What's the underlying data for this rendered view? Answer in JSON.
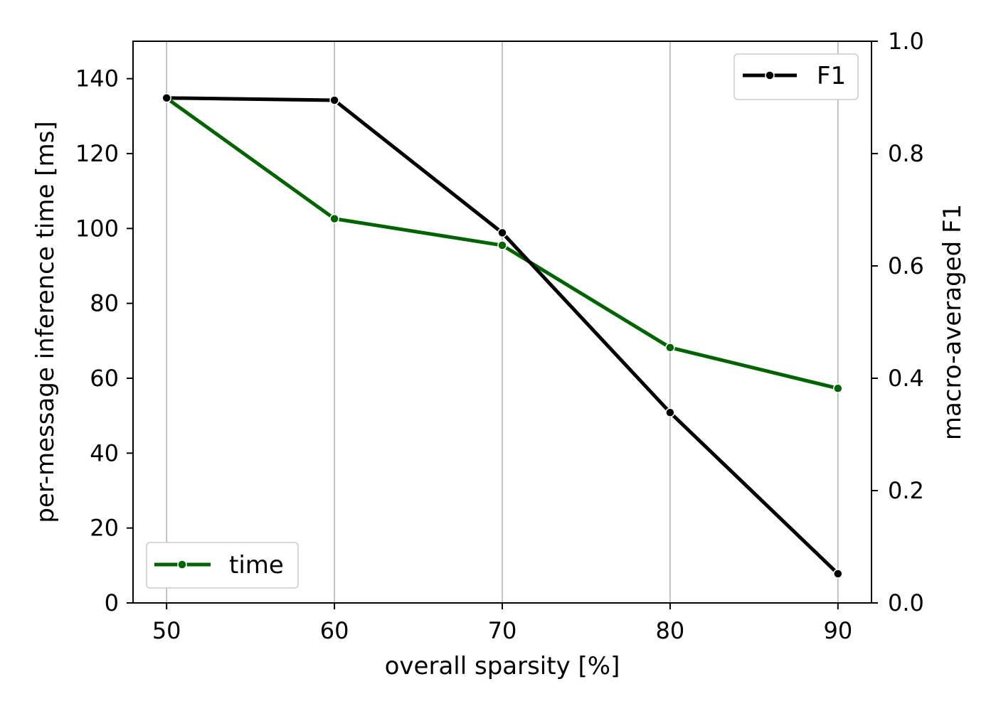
{
  "chart_data": {
    "type": "line",
    "x": [
      50,
      60,
      70,
      80,
      90
    ],
    "xlabel": "overall sparsity [%]",
    "ylabel_left": "per-message inference time [ms]",
    "ylabel_right": "macro-averaged F1",
    "xlim": [
      48,
      92
    ],
    "ylim_left": [
      0,
      150
    ],
    "ylim_right": [
      0,
      1.0
    ],
    "x_ticks": [
      "50",
      "60",
      "70",
      "80",
      "90"
    ],
    "y_left_ticks": [
      "0",
      "20",
      "40",
      "60",
      "80",
      "100",
      "120",
      "140"
    ],
    "y_right_ticks": [
      "0.0",
      "0.2",
      "0.4",
      "0.6",
      "0.8",
      "1.0"
    ],
    "grid": "vertical",
    "series": [
      {
        "name": "time",
        "axis": "left",
        "color": "#006400",
        "values": [
          134.8,
          102.6,
          95.5,
          68.2,
          57.3
        ],
        "legend_position": "lower-left"
      },
      {
        "name": "F1",
        "axis": "right",
        "color": "#000000",
        "values": [
          0.899,
          0.895,
          0.659,
          0.339,
          0.052
        ],
        "legend_position": "upper-right"
      }
    ]
  }
}
